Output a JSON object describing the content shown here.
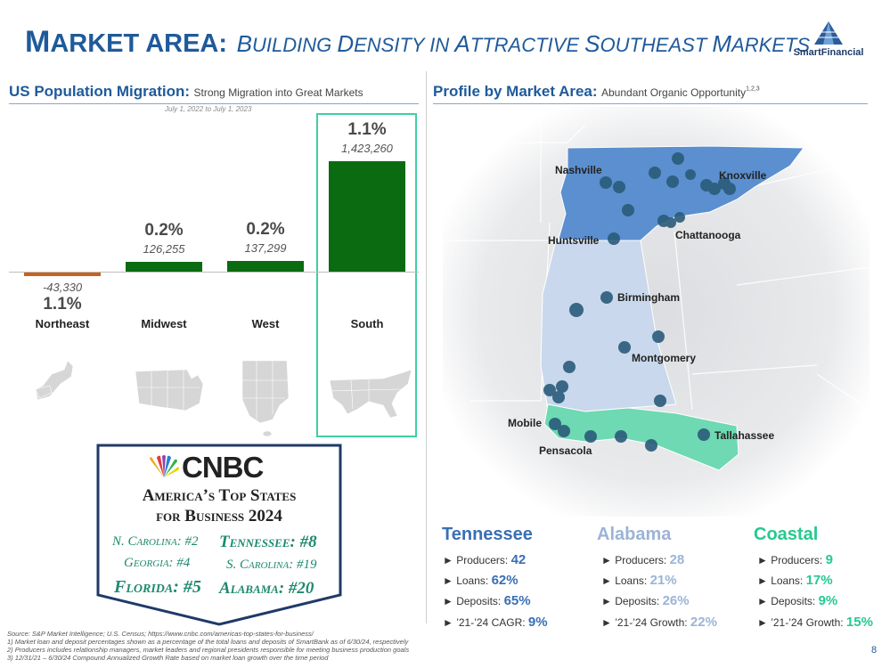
{
  "title": {
    "main_first": "M",
    "main_rest": "ARKET AREA:",
    "sub_words": [
      {
        "first": "B",
        "rest": "UILDING"
      },
      {
        "first": "D",
        "rest": "ENSITY IN"
      },
      {
        "first": "A",
        "rest": "TTRACTIVE"
      },
      {
        "first": "S",
        "rest": "OUTHEAST"
      },
      {
        "first": "M",
        "rest": "ARKETS"
      }
    ]
  },
  "logo": {
    "text": "SmartFinancial"
  },
  "left_section": {
    "heading": "US Population Migration:",
    "subheading": "Strong Migration into Great Markets",
    "date_note": "July 1, 2022 to July 1, 2023"
  },
  "right_section": {
    "heading": "Profile by Market Area:",
    "subheading": "Abundant Organic Opportunity",
    "superscript": "1,2,3"
  },
  "chart_data": {
    "type": "bar",
    "categories": [
      "Northeast",
      "Midwest",
      "West",
      "South"
    ],
    "values": [
      -43330,
      126255,
      137299,
      1423260
    ],
    "value_labels": [
      "-43,330",
      "126,255",
      "137,299",
      "1,423,260"
    ],
    "pct_labels": [
      "1.1%",
      "0.2%",
      "0.2%",
      "1.1%"
    ],
    "colors": [
      "#c8601e",
      "#0b6b10",
      "#0b6b10",
      "#0b6b10"
    ],
    "highlight": "South",
    "ylim": [
      -43330,
      1423260
    ]
  },
  "cnbc": {
    "brand": "CNBC",
    "title_line1": "America’s Top States",
    "title_line2": "for Business 2024",
    "rankings": [
      {
        "label": "N. Carolina: #2"
      },
      {
        "label": "Tennessee: #8"
      },
      {
        "label": "Georgia: #4"
      },
      {
        "label": "S. Carolina: #19"
      },
      {
        "label": "Florida: #5"
      },
      {
        "label": "Alabama: #20"
      }
    ]
  },
  "map": {
    "cities": [
      "Nashville",
      "Knoxville",
      "Chattanooga",
      "Huntsville",
      "Birmingham",
      "Montgomery",
      "Mobile",
      "Pensacola",
      "Tallahassee"
    ],
    "colors": {
      "tennessee": "#5b8fcf",
      "alabama": "#c9d8ec",
      "coastal": "#6ed9b3",
      "dot": "#2a5b7a"
    }
  },
  "markets": [
    {
      "name": "Tennessee",
      "color": "#3a6fb5",
      "stats": [
        {
          "label": "► Producers: ",
          "value": "42"
        },
        {
          "label": "► Loans: ",
          "value": "62%"
        },
        {
          "label": "► Deposits: ",
          "value": "65%"
        },
        {
          "label": "► ’21-’24 CAGR: ",
          "value": "9%"
        }
      ]
    },
    {
      "name": "Alabama",
      "color": "#9bb4d6",
      "stats": [
        {
          "label": "► Producers: ",
          "value": "28"
        },
        {
          "label": "► Loans: ",
          "value": "21%"
        },
        {
          "label": "► Deposits: ",
          "value": "26%"
        },
        {
          "label": "► ’21-’24 Growth: ",
          "value": "22%"
        }
      ]
    },
    {
      "name": "Coastal",
      "color": "#27c98f",
      "stats": [
        {
          "label": "► Producers: ",
          "value": "9"
        },
        {
          "label": "► Loans: ",
          "value": "17%"
        },
        {
          "label": "► Deposits: ",
          "value": "9%"
        },
        {
          "label": "► ’21-’24 Growth: ",
          "value": "15%"
        }
      ]
    }
  ],
  "footnotes": [
    "Source: S&P Market Intelligence; U.S. Census; https://www.cnbc.com/americas-top-states-for-business/",
    "1)       Market loan and deposit percentages shown as a percentage of the total loans and deposits of SmartBank as of 6/30/24, respectively",
    "2)       Producers includes relationship managers, market leaders and regional presidents responsible for meeting business production goals",
    "3)       12/31/21 – 6/30/24 Compound Annualized Growth Rate based on market loan growth over the time period"
  ],
  "page_number": "8"
}
